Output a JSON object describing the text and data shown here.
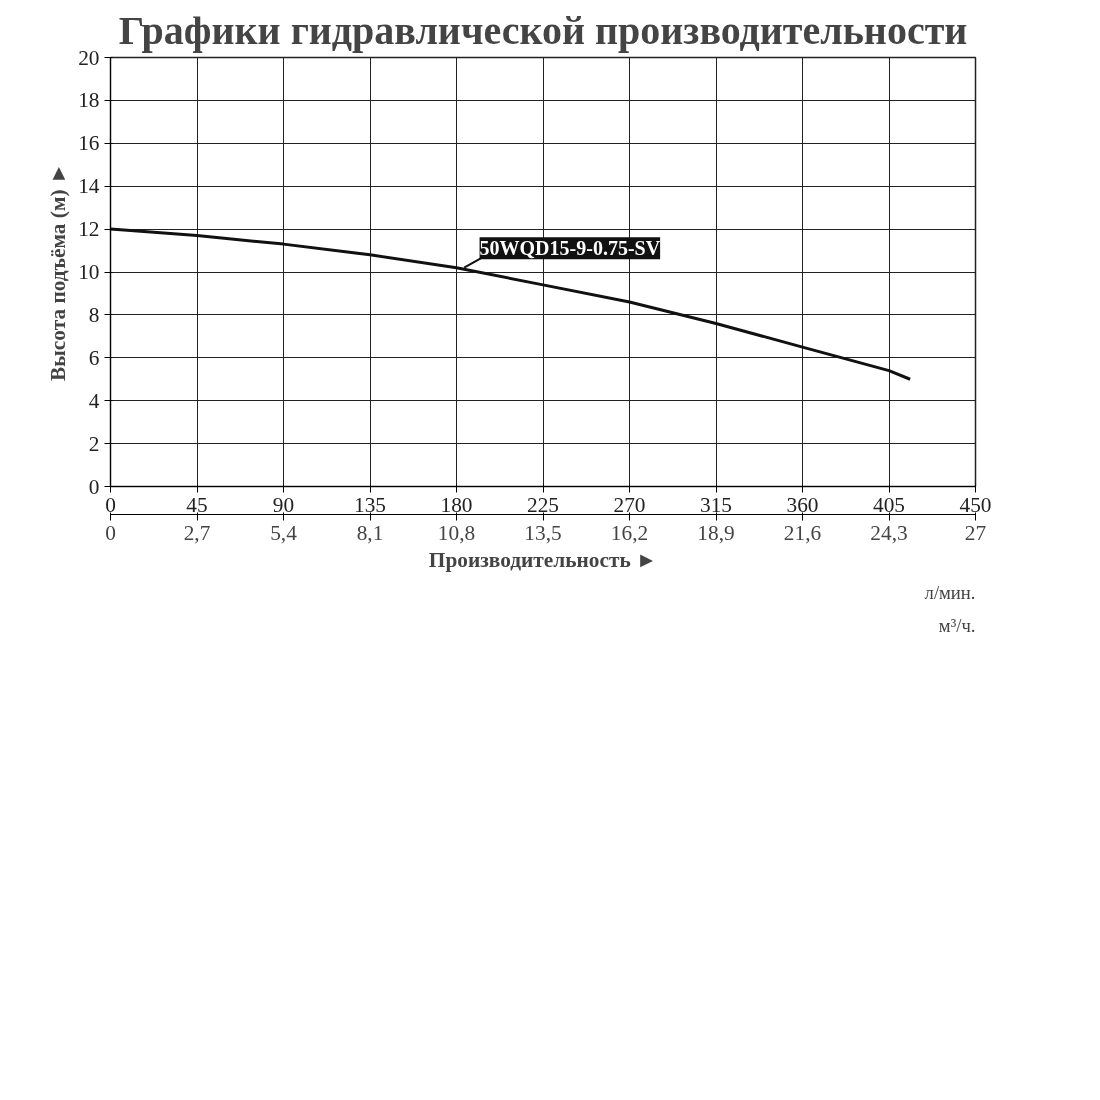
{
  "chart_data": {
    "type": "line",
    "title": "Графики гидравлической производительности",
    "xlabel": "Производительность ►",
    "ylabel": "Высота подъёма (м) ►",
    "x": [
      0,
      45,
      90,
      135,
      180,
      225,
      270,
      315,
      360,
      405,
      416
    ],
    "series": [
      {
        "name": "50WQD15-9-0.75-SV",
        "color": "#111111",
        "values": [
          12.0,
          11.7,
          11.3,
          10.8,
          10.2,
          9.4,
          8.6,
          7.6,
          6.5,
          5.4,
          5.0
        ]
      }
    ],
    "xlim": [
      0,
      450
    ],
    "xticks": [
      0,
      45,
      90,
      135,
      180,
      225,
      270,
      315,
      360,
      405,
      450
    ],
    "x2lim": [
      0,
      27
    ],
    "x2ticks": [
      0,
      {
        "value": 2.7,
        "label": "2,7"
      },
      {
        "value": 5.4,
        "label": "5,4"
      },
      {
        "value": 8.1,
        "label": "8,1"
      },
      {
        "value": 10.8,
        "label": "10,8"
      },
      {
        "value": 13.5,
        "label": "13,5"
      },
      {
        "value": 16.2,
        "label": "16,2"
      },
      {
        "value": 18.9,
        "label": "18,9"
      },
      {
        "value": 21.6,
        "label": "21,6"
      },
      {
        "value": 24.3,
        "label": "24,3"
      },
      27
    ],
    "ylim": [
      0,
      20
    ],
    "yticks": [
      0,
      2,
      4,
      6,
      8,
      10,
      12,
      14,
      16,
      18,
      20
    ],
    "annotations": [
      "л/мин.",
      "м³/ч."
    ],
    "grid": true,
    "legend": false,
    "marker": "none",
    "line_style": "solid"
  }
}
